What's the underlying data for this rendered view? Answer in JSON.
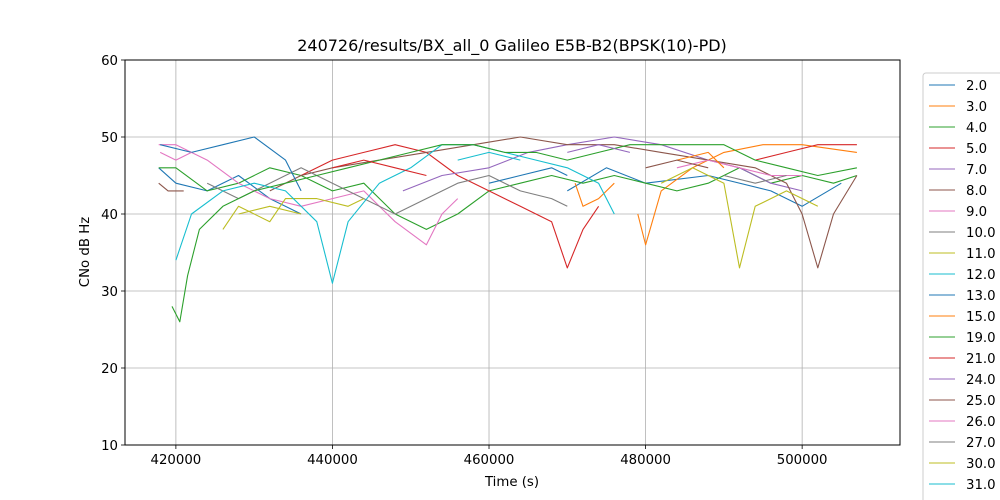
{
  "chart_data": {
    "type": "line",
    "title": "240726/results/BX_all_0 Galileo E5B-B2(BPSK(10)-PD)",
    "xlabel": "Time (s)",
    "ylabel": "CNo dB Hz",
    "xlim": [
      413500,
      512500
    ],
    "ylim": [
      10,
      60
    ],
    "xticks": [
      420000,
      440000,
      460000,
      480000,
      500000
    ],
    "yticks": [
      10,
      20,
      30,
      40,
      50,
      60
    ],
    "grid": true,
    "legend_placement": "right (outside plot, cut off at bottom)",
    "series": [
      {
        "name": "2.0",
        "color": "#1f77b4",
        "segments": [
          [
            [
              417800,
              46
            ],
            [
              420000,
              44
            ],
            [
              424000,
              43
            ],
            [
              428000,
              45
            ],
            [
              432000,
              42
            ],
            [
              436000,
              40
            ]
          ],
          [
            [
              470000,
              43
            ],
            [
              475000,
              46
            ],
            [
              480000,
              44
            ],
            [
              488000,
              45
            ],
            [
              496000,
              43
            ],
            [
              500000,
              41
            ],
            [
              505000,
              44
            ]
          ]
        ]
      },
      {
        "name": "3.0",
        "color": "#ff7f0e",
        "segments": [
          [
            [
              471000,
              44
            ],
            [
              472000,
              41
            ],
            [
              474000,
              42
            ],
            [
              476000,
              44
            ]
          ],
          [
            [
              479000,
              40
            ],
            [
              480000,
              36
            ],
            [
              482000,
              43
            ],
            [
              486000,
              46
            ],
            [
              490000,
              48
            ],
            [
              495000,
              49
            ],
            [
              500000,
              49
            ],
            [
              507000,
              48
            ]
          ]
        ]
      },
      {
        "name": "4.0",
        "color": "#2ca02c",
        "segments": [
          [
            [
              417800,
              46
            ],
            [
              420000,
              46
            ],
            [
              424000,
              43
            ],
            [
              428000,
              44
            ],
            [
              432000,
              46
            ],
            [
              436000,
              45
            ],
            [
              440000,
              43
            ],
            [
              444000,
              44
            ],
            [
              448000,
              40
            ],
            [
              452000,
              38
            ],
            [
              456000,
              40
            ],
            [
              460000,
              43
            ],
            [
              464000,
              44
            ],
            [
              468000,
              45
            ],
            [
              472000,
              44
            ],
            [
              476000,
              45
            ],
            [
              480000,
              44
            ],
            [
              484000,
              43
            ],
            [
              488000,
              44
            ],
            [
              492000,
              46
            ],
            [
              496000,
              44
            ],
            [
              500000,
              45
            ],
            [
              504000,
              44
            ],
            [
              507000,
              45
            ]
          ]
        ]
      },
      {
        "name": "5.0",
        "color": "#d62728",
        "segments": [
          [
            [
              436000,
              45
            ],
            [
              440000,
              47
            ],
            [
              444000,
              48
            ],
            [
              448000,
              49
            ],
            [
              452000,
              48
            ],
            [
              456000,
              45
            ],
            [
              460000,
              43
            ],
            [
              464000,
              41
            ],
            [
              468000,
              39
            ],
            [
              470000,
              33
            ],
            [
              472000,
              38
            ],
            [
              474000,
              41
            ]
          ],
          [
            [
              494000,
              47
            ],
            [
              498000,
              48
            ],
            [
              502000,
              49
            ],
            [
              507000,
              49
            ]
          ]
        ]
      },
      {
        "name": "7.0",
        "color": "#9467bd",
        "segments": [
          [
            [
              449000,
              43
            ],
            [
              454000,
              45
            ],
            [
              460000,
              46
            ],
            [
              465000,
              48
            ],
            [
              470000,
              49
            ],
            [
              476000,
              50
            ],
            [
              482000,
              49
            ],
            [
              488000,
              47
            ],
            [
              492000,
              46
            ],
            [
              496000,
              44
            ],
            [
              500000,
              43
            ]
          ]
        ]
      },
      {
        "name": "8.0",
        "color": "#8c564b",
        "segments": [
          [
            [
              417800,
              44
            ],
            [
              419000,
              43
            ],
            [
              421000,
              43
            ]
          ],
          [
            [
              432000,
              43
            ],
            [
              436000,
              45
            ],
            [
              440000,
              46
            ],
            [
              446000,
              47
            ],
            [
              452000,
              48
            ],
            [
              458000,
              49
            ],
            [
              464000,
              50
            ],
            [
              470000,
              49
            ],
            [
              476000,
              49
            ],
            [
              482000,
              48
            ],
            [
              488000,
              47
            ],
            [
              494000,
              46
            ],
            [
              498000,
              44
            ],
            [
              500000,
              40
            ],
            [
              502000,
              33
            ],
            [
              504000,
              40
            ],
            [
              507000,
              45
            ]
          ]
        ]
      },
      {
        "name": "9.0",
        "color": "#e377c2",
        "segments": [
          [
            [
              417800,
              49
            ],
            [
              420000,
              49
            ],
            [
              424000,
              47
            ],
            [
              428000,
              44
            ],
            [
              432000,
              42
            ],
            [
              436000,
              41
            ],
            [
              440000,
              42
            ],
            [
              444000,
              43
            ],
            [
              446000,
              41
            ],
            [
              448000,
              39
            ],
            [
              452000,
              36
            ],
            [
              454000,
              40
            ],
            [
              456000,
              42
            ]
          ],
          [
            [
              484000,
              46
            ],
            [
              488000,
              47
            ],
            [
              492000,
              46
            ],
            [
              496000,
              45
            ],
            [
              500000,
              45
            ]
          ]
        ]
      },
      {
        "name": "10.0",
        "color": "#7f7f7f",
        "segments": [
          [
            [
              424000,
              44
            ],
            [
              428000,
              42
            ],
            [
              432000,
              44
            ],
            [
              436000,
              46
            ],
            [
              440000,
              44
            ],
            [
              444000,
              42
            ],
            [
              448000,
              40
            ],
            [
              452000,
              42
            ],
            [
              456000,
              44
            ],
            [
              460000,
              45
            ],
            [
              464000,
              43
            ],
            [
              468000,
              42
            ],
            [
              470000,
              41
            ]
          ]
        ]
      },
      {
        "name": "11.0",
        "color": "#bcbd22",
        "segments": [
          [
            [
              426000,
              38
            ],
            [
              428000,
              41
            ],
            [
              432000,
              39
            ],
            [
              434000,
              42
            ],
            [
              438000,
              42
            ],
            [
              442000,
              41
            ],
            [
              444000,
              42
            ]
          ],
          [
            [
              482000,
              44
            ],
            [
              486000,
              46
            ],
            [
              490000,
              44
            ],
            [
              492000,
              33
            ],
            [
              494000,
              41
            ],
            [
              498000,
              43
            ],
            [
              502000,
              41
            ]
          ]
        ]
      },
      {
        "name": "12.0",
        "color": "#17becf",
        "segments": [
          [
            [
              420000,
              34
            ],
            [
              422000,
              40
            ],
            [
              426000,
              43
            ],
            [
              430000,
              44
            ],
            [
              434000,
              43
            ],
            [
              438000,
              39
            ],
            [
              440000,
              31
            ],
            [
              442000,
              39
            ],
            [
              446000,
              44
            ],
            [
              450000,
              46
            ],
            [
              454000,
              49
            ],
            [
              458000,
              49
            ],
            [
              462000,
              48
            ],
            [
              466000,
              47
            ],
            [
              470000,
              46
            ],
            [
              474000,
              44
            ],
            [
              476000,
              40
            ]
          ]
        ]
      },
      {
        "name": "13.0",
        "color": "#1f77b4",
        "segments": [
          [
            [
              418000,
              49
            ],
            [
              422000,
              48
            ],
            [
              426000,
              49
            ],
            [
              430000,
              50
            ],
            [
              434000,
              47
            ],
            [
              436000,
              43
            ]
          ],
          [
            [
              460000,
              44
            ],
            [
              464000,
              45
            ],
            [
              468000,
              46
            ],
            [
              470000,
              45
            ]
          ]
        ]
      },
      {
        "name": "15.0",
        "color": "#ff7f0e",
        "segments": [
          [
            [
              484000,
              47
            ],
            [
              488000,
              48
            ],
            [
              490000,
              46
            ]
          ]
        ]
      },
      {
        "name": "19.0",
        "color": "#2ca02c",
        "segments": [
          [
            [
              419500,
              28
            ],
            [
              420500,
              26
            ],
            [
              421500,
              32
            ],
            [
              423000,
              38
            ],
            [
              426000,
              41
            ],
            [
              430000,
              43
            ],
            [
              434000,
              44
            ],
            [
              438000,
              45
            ],
            [
              442000,
              46
            ],
            [
              446000,
              47
            ],
            [
              450000,
              48
            ],
            [
              454000,
              49
            ],
            [
              458000,
              49
            ],
            [
              462000,
              48
            ],
            [
              466000,
              48
            ],
            [
              470000,
              47
            ],
            [
              474000,
              48
            ],
            [
              478000,
              49
            ],
            [
              482000,
              49
            ],
            [
              486000,
              49
            ],
            [
              490000,
              49
            ],
            [
              494000,
              47
            ],
            [
              498000,
              46
            ],
            [
              502000,
              45
            ],
            [
              507000,
              46
            ]
          ]
        ]
      },
      {
        "name": "21.0",
        "color": "#d62728",
        "segments": [
          [
            [
              440000,
              46
            ],
            [
              444000,
              47
            ],
            [
              448000,
              46
            ],
            [
              452000,
              45
            ]
          ]
        ]
      },
      {
        "name": "24.0",
        "color": "#9467bd",
        "segments": [
          [
            [
              470000,
              48
            ],
            [
              474000,
              49
            ],
            [
              478000,
              48
            ]
          ]
        ]
      },
      {
        "name": "25.0",
        "color": "#8c564b",
        "segments": [
          [
            [
              480000,
              46
            ],
            [
              484000,
              47
            ],
            [
              488000,
              46
            ]
          ]
        ]
      },
      {
        "name": "26.0",
        "color": "#e377c2",
        "segments": [
          [
            [
              418000,
              48
            ],
            [
              420000,
              47
            ],
            [
              422000,
              48
            ]
          ]
        ]
      },
      {
        "name": "27.0",
        "color": "#7f7f7f",
        "segments": [
          [
            [
              490000,
              45
            ],
            [
              494000,
              44
            ],
            [
              498000,
              45
            ]
          ]
        ]
      },
      {
        "name": "30.0",
        "color": "#bcbd22",
        "segments": [
          [
            [
              428000,
              40
            ],
            [
              432000,
              41
            ],
            [
              436000,
              40
            ]
          ]
        ]
      },
      {
        "name": "31.0",
        "color": "#17becf",
        "segments": [
          [
            [
              456000,
              47
            ],
            [
              460000,
              48
            ],
            [
              464000,
              47
            ]
          ]
        ]
      }
    ],
    "legend_entries": [
      "2.0",
      "3.0",
      "4.0",
      "5.0",
      "7.0",
      "8.0",
      "9.0",
      "10.0",
      "11.0",
      "12.0",
      "13.0",
      "15.0",
      "19.0",
      "21.0",
      "24.0",
      "25.0",
      "26.0",
      "27.0",
      "30.0",
      "31.0"
    ]
  }
}
